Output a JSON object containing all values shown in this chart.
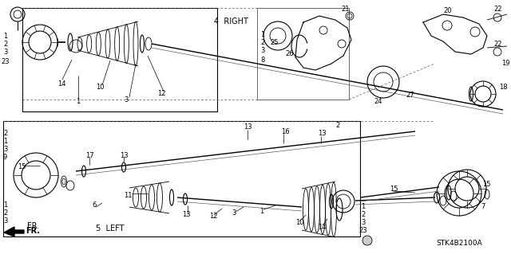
{
  "background_color": "#ffffff",
  "watermark": "STK4B2100A",
  "figsize": [
    6.4,
    3.19
  ],
  "dpi": 100,
  "title_label": "4  RIGHT",
  "left_label": "5  LEFT",
  "fr_label": "FR.",
  "part_labels_topleft_stack": [
    "1",
    "2",
    "3",
    "23"
  ],
  "part_labels_botleft_stack": [
    "1",
    "2",
    "3"
  ],
  "part_labels_bot2_stack": [
    "1",
    "3",
    "9"
  ],
  "part_labels_subbox_stack": [
    "1",
    "2",
    "3",
    "8"
  ]
}
